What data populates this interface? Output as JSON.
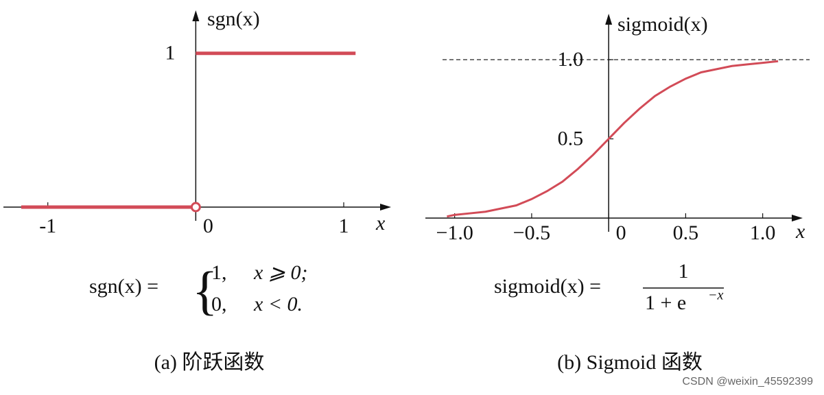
{
  "chart_data": [
    {
      "type": "line",
      "x_label": "x",
      "y_label": "sgn(x)",
      "x": [
        -1.18,
        0,
        0,
        0,
        1.08
      ],
      "series": [
        {
          "color": "#d24b57",
          "values": [
            0,
            0,
            null,
            1,
            1
          ]
        }
      ],
      "open_point": {
        "x": 0,
        "y": 0
      },
      "xlim": [
        -1.3,
        1.32
      ],
      "ylim": [
        0,
        1.28
      ],
      "xticks": [
        -1,
        0,
        1
      ],
      "yticks": [
        1
      ],
      "formula": {
        "lhs": "sgn(x) =",
        "cases": [
          [
            "1,",
            "x ⩾ 0;"
          ],
          [
            "0,",
            "x < 0."
          ]
        ]
      },
      "caption": "(a) 阶跃函数"
    },
    {
      "type": "line",
      "x_label": "x",
      "y_label": "sigmoid(x)",
      "x": [
        -1.05,
        -1.0,
        -0.9,
        -0.8,
        -0.7,
        -0.6,
        -0.5,
        -0.4,
        -0.3,
        -0.2,
        -0.1,
        0,
        0.1,
        0.2,
        0.3,
        0.4,
        0.5,
        0.6,
        0.7,
        0.8,
        0.9,
        1.0,
        1.1
      ],
      "series": [
        {
          "color": "#d24b57",
          "values": [
            0.01,
            0.02,
            0.03,
            0.04,
            0.06,
            0.08,
            0.12,
            0.17,
            0.23,
            0.31,
            0.4,
            0.5,
            0.6,
            0.69,
            0.77,
            0.83,
            0.88,
            0.92,
            0.94,
            0.96,
            0.97,
            0.98,
            0.99
          ]
        }
      ],
      "hlines": [
        1
      ],
      "xlim": [
        -1.19,
        1.26
      ],
      "ylim": [
        0,
        1.29
      ],
      "xticks": [
        {
          "value": -1,
          "label": "−1.0"
        },
        {
          "value": -0.5,
          "label": "−0.5"
        },
        0,
        0.5,
        {
          "value": 1,
          "label": "1.0"
        }
      ],
      "yticks": [
        0.5,
        {
          "value": 1,
          "label": "1.0"
        }
      ],
      "formula": {
        "lhs": "sigmoid(x) =",
        "numerator": "1",
        "denominator": "1 + e",
        "exponent": "−x"
      },
      "caption": "(b) Sigmoid 函数"
    }
  ],
  "watermark": "CSDN @weixin_45592399"
}
